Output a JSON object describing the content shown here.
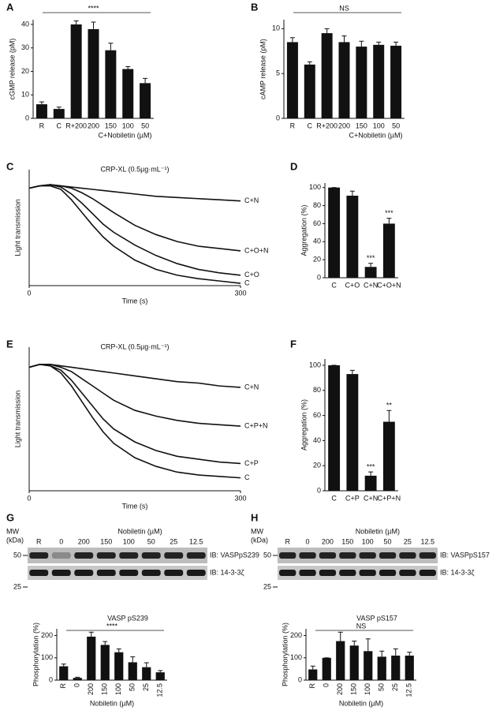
{
  "chart_data": [
    {
      "type": "bar",
      "panel": "A",
      "ylabel": "cGMP release (pM)",
      "xlabel": "C+Nobiletin (µM)",
      "annotation": "****",
      "categories": [
        "R",
        "C",
        "R+200",
        "200",
        "150",
        "100",
        "50"
      ],
      "values": [
        6,
        4,
        40,
        38,
        29,
        21,
        15
      ],
      "errors": [
        1,
        0.8,
        1.5,
        3,
        3,
        1,
        2
      ],
      "color": "#111111",
      "ylim": [
        0,
        42
      ],
      "yticks": [
        0,
        10,
        20,
        30,
        40
      ]
    },
    {
      "type": "bar",
      "panel": "B",
      "ylabel": "cAMP release (pM)",
      "xlabel": "C+Nobiletin (µM)",
      "annotation": "NS",
      "categories": [
        "R",
        "C",
        "R+200",
        "200",
        "150",
        "100",
        "50"
      ],
      "values": [
        8.5,
        6,
        9.5,
        8.5,
        8,
        8.2,
        8.1
      ],
      "errors": [
        0.5,
        0.3,
        0.5,
        0.7,
        0.6,
        0.3,
        0.4
      ],
      "color": "#111111",
      "ylim": [
        0,
        11
      ],
      "yticks": [
        0,
        5,
        10
      ]
    },
    {
      "type": "line",
      "panel": "C",
      "title": "CRP-XL (0.5µg·mL⁻¹)",
      "ylabel": "Light transmission",
      "xlabel": "Time (s)",
      "x": [
        0,
        15,
        30,
        45,
        60,
        75,
        90,
        105,
        120,
        150,
        180,
        210,
        240,
        270,
        300
      ],
      "xlim": [
        0,
        300
      ],
      "xticks": [
        0,
        300
      ],
      "ylim": [
        0,
        100
      ],
      "series": [
        {
          "name": "C+N",
          "color": "#111111",
          "values": [
            84,
            86,
            87,
            86,
            85,
            84,
            83,
            82,
            81,
            79,
            77,
            76,
            75,
            74,
            73
          ]
        },
        {
          "name": "C+O+N",
          "color": "#111111",
          "values": [
            84,
            86,
            87,
            86,
            84,
            80,
            75,
            69,
            63,
            52,
            44,
            38,
            34,
            32,
            30
          ]
        },
        {
          "name": "C+O",
          "color": "#111111",
          "values": [
            84,
            86,
            87,
            85,
            79,
            71,
            62,
            53,
            46,
            35,
            26,
            19,
            14,
            11,
            9
          ]
        },
        {
          "name": "C",
          "color": "#111111",
          "values": [
            84,
            86,
            86,
            83,
            74,
            63,
            52,
            42,
            34,
            22,
            14,
            9,
            6,
            4,
            2
          ]
        }
      ]
    },
    {
      "type": "bar",
      "panel": "D",
      "ylabel": "Aggregation (%)",
      "categories": [
        "C",
        "C+O",
        "C+N",
        "C+O+N"
      ],
      "values": [
        100,
        91,
        12,
        60
      ],
      "errors": [
        0,
        5,
        4,
        6
      ],
      "significance": [
        null,
        null,
        "***",
        "***"
      ],
      "color": "#111111",
      "ylim": [
        0,
        105
      ],
      "yticks": [
        0,
        20,
        40,
        60,
        80,
        100
      ]
    },
    {
      "type": "line",
      "panel": "E",
      "title": "CRP-XL (0.5µg·mL⁻¹)",
      "ylabel": "Light transmission",
      "xlabel": "Time (s)",
      "x": [
        0,
        15,
        30,
        45,
        60,
        75,
        90,
        105,
        120,
        150,
        180,
        210,
        240,
        270,
        300
      ],
      "xlim": [
        0,
        300
      ],
      "xticks": [
        0,
        300
      ],
      "ylim": [
        0,
        100
      ],
      "series": [
        {
          "name": "C+N",
          "color": "#111111",
          "values": [
            86,
            88,
            88,
            87,
            86,
            85,
            84,
            83,
            82,
            80,
            78,
            76,
            75,
            73,
            72
          ]
        },
        {
          "name": "C+P+N",
          "color": "#111111",
          "values": [
            86,
            88,
            88,
            86,
            83,
            78,
            73,
            68,
            63,
            56,
            52,
            49,
            47,
            46,
            45
          ]
        },
        {
          "name": "C+P",
          "color": "#111111",
          "values": [
            86,
            88,
            87,
            84,
            77,
            68,
            59,
            50,
            43,
            34,
            28,
            24,
            22,
            20,
            19
          ]
        },
        {
          "name": "C",
          "color": "#111111",
          "values": [
            86,
            88,
            87,
            82,
            73,
            62,
            51,
            41,
            33,
            23,
            17,
            13,
            11,
            10,
            9
          ]
        }
      ]
    },
    {
      "type": "bar",
      "panel": "F",
      "ylabel": "Aggregation (%)",
      "categories": [
        "C",
        "C+P",
        "C+N",
        "C+P+N"
      ],
      "values": [
        100,
        93,
        12,
        55
      ],
      "errors": [
        0,
        3,
        3,
        9
      ],
      "significance": [
        null,
        null,
        "***",
        "**"
      ],
      "color": "#111111",
      "ylim": [
        0,
        105
      ],
      "yticks": [
        0,
        20,
        40,
        60,
        80,
        100
      ]
    },
    {
      "type": "bar",
      "title": "VASP pS239",
      "ylabel": "Phosphorylation (%)",
      "xlabel": "Nobiletin (µM)",
      "annotation": "****",
      "rotate_categories": true,
      "categories": [
        "R",
        "0",
        "200",
        "150",
        "100",
        "50",
        "25",
        "12.5"
      ],
      "values": [
        62,
        10,
        195,
        158,
        125,
        80,
        58,
        35
      ],
      "errors": [
        10,
        3,
        20,
        15,
        15,
        25,
        20,
        8
      ],
      "color": "#111111",
      "ylim": [
        0,
        230
      ],
      "yticks": [
        0,
        100,
        200
      ]
    },
    {
      "type": "bar",
      "title": "VASP pS157",
      "ylabel": "Phosphorylation (%)",
      "xlabel": "Nobiletin (µM)",
      "annotation": "NS",
      "rotate_categories": true,
      "categories": [
        "R",
        "0",
        "200",
        "150",
        "100",
        "50",
        "25",
        "12.5"
      ],
      "values": [
        48,
        100,
        175,
        155,
        130,
        105,
        110,
        110
      ],
      "errors": [
        15,
        0,
        40,
        20,
        55,
        25,
        30,
        15
      ],
      "color": "#111111",
      "ylim": [
        0,
        230
      ],
      "yticks": [
        0,
        100,
        200
      ]
    }
  ],
  "blots": [
    {
      "panel": "G",
      "mw": "MW",
      "mw_unit": "(kDa)",
      "markers": [
        50,
        25
      ],
      "header": "Nobiletin (µM)",
      "lanes": [
        "R",
        "0",
        "200",
        "150",
        "100",
        "50",
        "25",
        "12.5"
      ],
      "ib": [
        "IB: VASPpS239",
        "IB: 14-3-3ζ"
      ]
    },
    {
      "panel": "H",
      "mw": "MW",
      "mw_unit": "(kDa)",
      "markers": [
        50,
        25
      ],
      "header": "Nobiletin (µM)",
      "lanes": [
        "R",
        "0",
        "200",
        "150",
        "100",
        "50",
        "25",
        "12.5"
      ],
      "ib": [
        "IB: VASPpS157",
        "IB: 14-3-3ζ"
      ]
    }
  ]
}
